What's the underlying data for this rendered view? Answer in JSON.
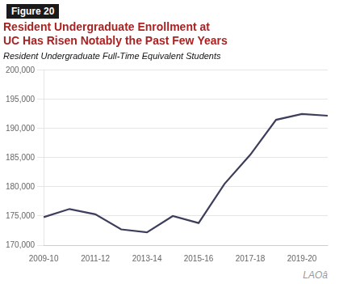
{
  "chart_data": {
    "type": "line",
    "title": [
      "Resident Undergraduate Enrollment at",
      "UC Has Risen Notably the Past Few Years"
    ],
    "subtitle": "Resident Undergraduate Full-Time Equivalent Students",
    "annotations": [
      "Figure 20",
      "LAOâ"
    ],
    "categories": [
      "2009-10",
      null,
      "2011-12",
      null,
      "2013-14",
      null,
      "2015-16",
      null,
      "2017-18",
      null,
      "2019-20",
      null
    ],
    "values": [
      174800,
      176200,
      175300,
      172700,
      172200,
      175000,
      173800,
      180500,
      185500,
      191500,
      192500,
      192200
    ],
    "color": "#3d3d5c",
    "ylim": [
      170000,
      200000
    ],
    "yticks": [
      {
        "value": 170000,
        "label": "170,000"
      },
      {
        "value": 175000,
        "label": "175,000"
      },
      {
        "value": 180000,
        "label": "180,000"
      },
      {
        "value": 185000,
        "label": "185,000"
      },
      {
        "value": 190000,
        "label": "190,000"
      },
      {
        "value": 195000,
        "label": "195,000"
      },
      {
        "value": 200000,
        "label": "200,000"
      }
    ],
    "grid": "y"
  }
}
